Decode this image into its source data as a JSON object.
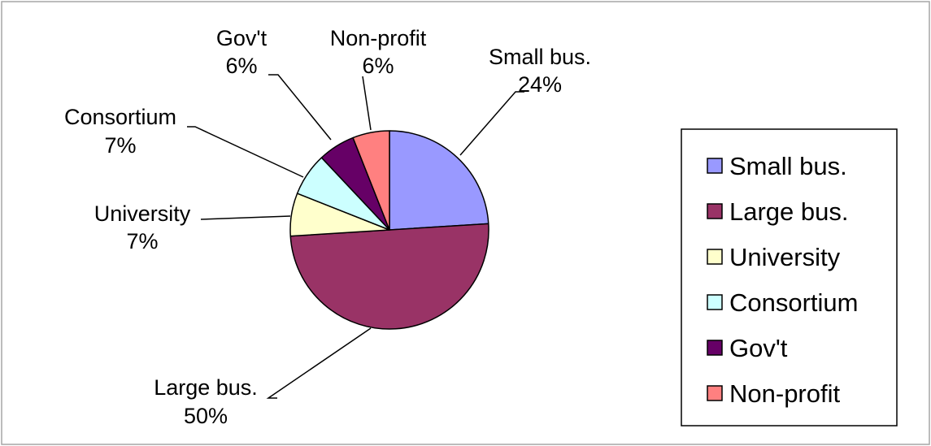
{
  "chart_data": {
    "type": "pie",
    "title": "",
    "start_angle_deg": 0,
    "direction": "clockwise",
    "slices": [
      {
        "label": "Small bus.",
        "value": 24,
        "percent_label": "24%",
        "color": "#9999ff"
      },
      {
        "label": "Large bus.",
        "value": 50,
        "percent_label": "50%",
        "color": "#993366"
      },
      {
        "label": "University",
        "value": 7,
        "percent_label": "7%",
        "color": "#ffffcc"
      },
      {
        "label": "Consortium",
        "value": 7,
        "percent_label": "7%",
        "color": "#ccffff"
      },
      {
        "label": "Gov't",
        "value": 6,
        "percent_label": "6%",
        "color": "#660066"
      },
      {
        "label": "Non-profit",
        "value": 6,
        "percent_label": "6%",
        "color": "#ff8080"
      }
    ],
    "legend": {
      "placement": "right",
      "items": [
        "Small bus.",
        "Large bus.",
        "University",
        "Consortium",
        "Gov't",
        "Non-profit"
      ]
    }
  }
}
